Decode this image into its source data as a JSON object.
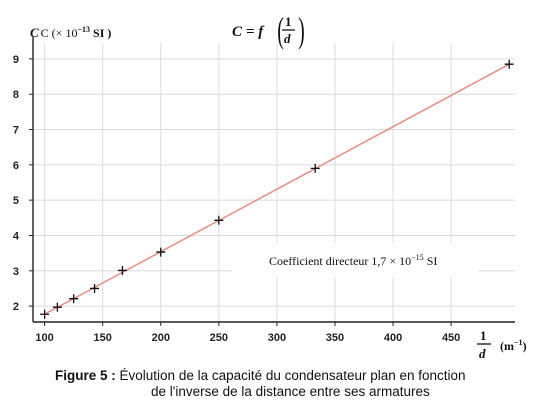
{
  "chart_data": {
    "type": "scatter",
    "title": "C = f(1/d)",
    "title_parts": {
      "lhs": "C",
      "eq": "= f",
      "num": "1",
      "den": "d"
    },
    "ylabel": "C (× 10",
    "ylabel_exp": "−13",
    "ylabel_unit": "SI )",
    "xlabel_num": "1",
    "xlabel_den": "d",
    "xlabel_unit": "(m",
    "xlabel_unit_exp": "−1",
    "xlabel_unit_close": ")",
    "xlim": [
      90,
      505
    ],
    "ylim": [
      1.55,
      9.45
    ],
    "x_ticks": [
      100,
      150,
      200,
      250,
      300,
      350,
      400,
      450
    ],
    "y_ticks": [
      2,
      3,
      4,
      5,
      6,
      7,
      8,
      9
    ],
    "grid": true,
    "points": [
      {
        "x": 100,
        "y": 1.77
      },
      {
        "x": 111,
        "y": 1.97
      },
      {
        "x": 125,
        "y": 2.21
      },
      {
        "x": 143,
        "y": 2.5
      },
      {
        "x": 167,
        "y": 3.01
      },
      {
        "x": 200,
        "y": 3.53
      },
      {
        "x": 250,
        "y": 4.43
      },
      {
        "x": 333,
        "y": 5.9
      },
      {
        "x": 500,
        "y": 8.85
      }
    ],
    "fit_line": {
      "x": [
        100,
        500
      ],
      "y": [
        1.77,
        8.85
      ],
      "color": "#e8918a"
    },
    "annotation": {
      "text": "Coefficient directeur 1,7 × 10",
      "exp": "−15",
      "unit": " SI"
    }
  },
  "caption": {
    "label": "Figure 5 :",
    "line1": "Évolution de la capacité du condensateur plan en fonction",
    "line2": "de l'inverse de la distance entre ses armatures"
  }
}
